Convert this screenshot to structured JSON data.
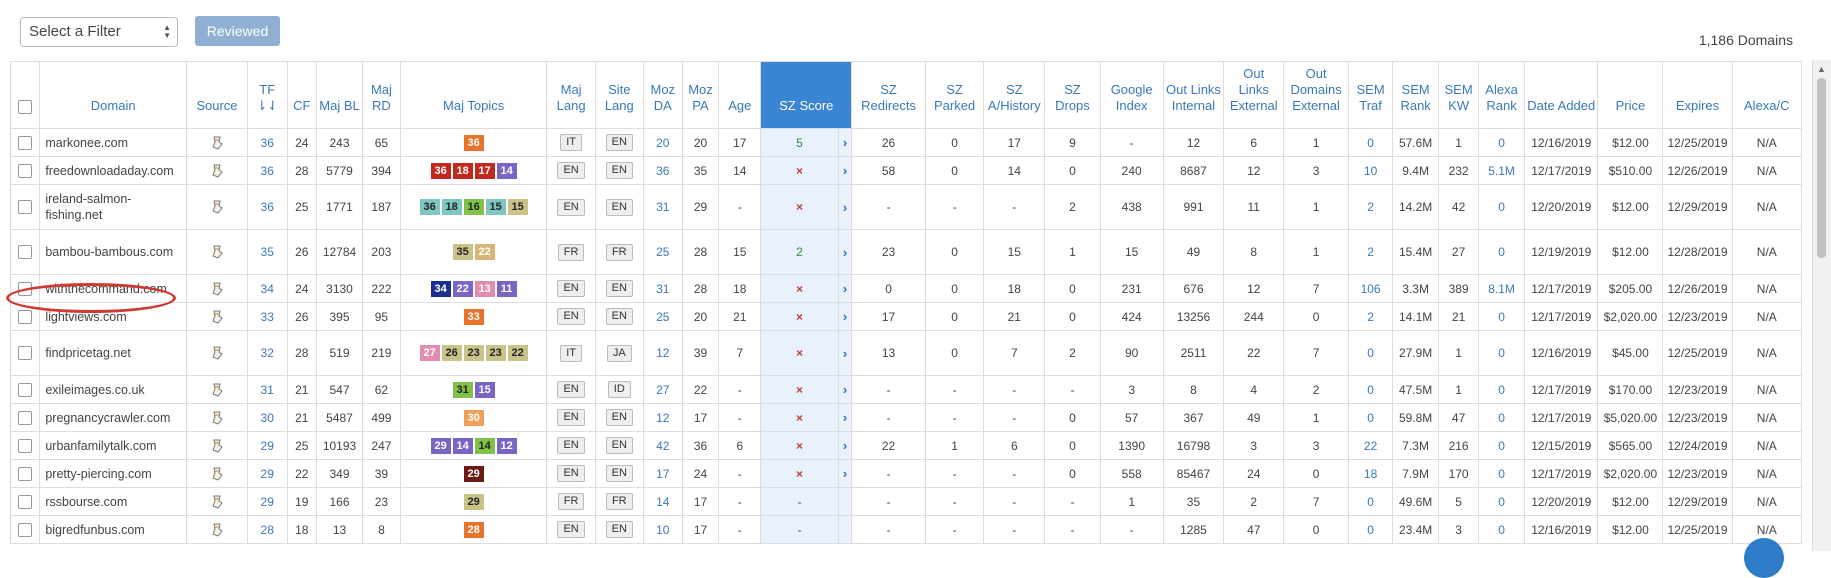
{
  "toolbar": {
    "filter_value": "Select a Filter",
    "reviewed_label": "Reviewed",
    "count_label": "1,186 Domains"
  },
  "columns": [
    {
      "key": "domain",
      "label": "Domain"
    },
    {
      "key": "source",
      "label": "Source"
    },
    {
      "key": "tf",
      "label": "TF"
    },
    {
      "key": "cf",
      "label": "CF"
    },
    {
      "key": "maj_bl",
      "label": "Maj BL"
    },
    {
      "key": "maj_rd",
      "label": "Maj RD"
    },
    {
      "key": "maj_topics",
      "label": "Maj Topics"
    },
    {
      "key": "maj_lang",
      "label": "Maj Lang"
    },
    {
      "key": "site_lang",
      "label": "Site Lang"
    },
    {
      "key": "moz_da",
      "label": "Moz DA"
    },
    {
      "key": "moz_pa",
      "label": "Moz PA"
    },
    {
      "key": "age",
      "label": "Age"
    },
    {
      "key": "sz_score",
      "label": "SZ Score"
    },
    {
      "key": "sz_redirects",
      "label": "SZ Redirects"
    },
    {
      "key": "sz_parked",
      "label": "SZ Parked"
    },
    {
      "key": "sz_history",
      "label": "SZ A/History"
    },
    {
      "key": "sz_drops",
      "label": "SZ Drops"
    },
    {
      "key": "google_index",
      "label": "Google Index"
    },
    {
      "key": "out_links_internal",
      "label": "Out Links Internal"
    },
    {
      "key": "out_links_external",
      "label": "Out Links External"
    },
    {
      "key": "out_domains_external",
      "label": "Out Domains External"
    },
    {
      "key": "sem_traf",
      "label": "SEM Traf"
    },
    {
      "key": "sem_rank",
      "label": "SEM Rank"
    },
    {
      "key": "sem_kw",
      "label": "SEM KW"
    },
    {
      "key": "alexa_rank",
      "label": "Alexa Rank"
    },
    {
      "key": "date_added",
      "label": "Date Added"
    },
    {
      "key": "price",
      "label": "Price"
    },
    {
      "key": "expires",
      "label": "Expires"
    },
    {
      "key": "alexa_c",
      "label": "Alexa/C"
    }
  ],
  "topic_colors": {
    "orange": "#e8742c",
    "red": "#c2281e",
    "purple": "#7a64c4",
    "teal": "#7fc6c2",
    "olive": "#c9c38a",
    "tan": "#d8b479",
    "green": "#7fc247",
    "navy": "#1b2f8f",
    "pink": "#e08db0",
    "darkred": "#6a1a12",
    "peach": "#f0a05a"
  },
  "rows": [
    {
      "domain": "markonee.com",
      "tf": "36",
      "cf": "24",
      "maj_bl": "243",
      "maj_rd": "65",
      "topics": [
        {
          "v": "36",
          "c": "orange",
          "t": "#fff"
        }
      ],
      "maj_lang": "IT",
      "site_lang": "EN",
      "moz_da": "20",
      "moz_pa": "20",
      "age": "17",
      "sz_score": "5",
      "sz_type": "num",
      "sz_redirects": "26",
      "sz_parked": "0",
      "sz_history": "17",
      "sz_drops": "9",
      "google_index": "-",
      "out_links_internal": "12",
      "out_links_external": "6",
      "out_domains_external": "1",
      "sem_traf": "0",
      "sem_rank": "57.6M",
      "sem_kw": "1",
      "alexa_rank": "0",
      "date_added": "12/16/2019",
      "price": "$12.00",
      "expires": "12/25/2019",
      "alexa_c": "N/A",
      "tall": false
    },
    {
      "domain": "freedownloadaday.com",
      "tf": "36",
      "cf": "28",
      "maj_bl": "5779",
      "maj_rd": "394",
      "topics": [
        {
          "v": "36",
          "c": "red",
          "t": "#fff"
        },
        {
          "v": "18",
          "c": "red",
          "t": "#fff"
        },
        {
          "v": "17",
          "c": "red",
          "t": "#fff"
        },
        {
          "v": "14",
          "c": "purple",
          "t": "#fff"
        }
      ],
      "maj_lang": "EN",
      "site_lang": "EN",
      "moz_da": "36",
      "moz_pa": "35",
      "age": "14",
      "sz_score": "×",
      "sz_type": "x",
      "sz_redirects": "58",
      "sz_parked": "0",
      "sz_history": "14",
      "sz_drops": "0",
      "google_index": "240",
      "out_links_internal": "8687",
      "out_links_external": "12",
      "out_domains_external": "3",
      "sem_traf": "10",
      "sem_rank": "9.4M",
      "sem_kw": "232",
      "alexa_rank": "5.1M",
      "date_added": "12/17/2019",
      "price": "$510.00",
      "expires": "12/26/2019",
      "alexa_c": "N/A",
      "tall": false
    },
    {
      "domain": "ireland-salmon-fishing.net",
      "tf": "36",
      "cf": "25",
      "maj_bl": "1771",
      "maj_rd": "187",
      "topics": [
        {
          "v": "36",
          "c": "teal",
          "t": "#222"
        },
        {
          "v": "18",
          "c": "teal",
          "t": "#222"
        },
        {
          "v": "16",
          "c": "green",
          "t": "#222"
        },
        {
          "v": "15",
          "c": "teal",
          "t": "#222"
        },
        {
          "v": "15",
          "c": "olive",
          "t": "#222"
        }
      ],
      "maj_lang": "EN",
      "site_lang": "EN",
      "moz_da": "31",
      "moz_pa": "29",
      "age": "-",
      "sz_score": "×",
      "sz_type": "x",
      "sz_redirects": "-",
      "sz_parked": "-",
      "sz_history": "-",
      "sz_drops": "2",
      "google_index": "438",
      "out_links_internal": "991",
      "out_links_external": "11",
      "out_domains_external": "1",
      "sem_traf": "2",
      "sem_rank": "14.2M",
      "sem_kw": "42",
      "alexa_rank": "0",
      "date_added": "12/20/2019",
      "price": "$12.00",
      "expires": "12/29/2019",
      "alexa_c": "N/A",
      "tall": true
    },
    {
      "domain": "bambou-bambous.com",
      "tf": "35",
      "cf": "26",
      "maj_bl": "12784",
      "maj_rd": "203",
      "topics": [
        {
          "v": "35",
          "c": "olive",
          "t": "#222"
        },
        {
          "v": "22",
          "c": "tan",
          "t": "#fff"
        }
      ],
      "maj_lang": "FR",
      "site_lang": "FR",
      "moz_da": "25",
      "moz_pa": "28",
      "age": "15",
      "sz_score": "2",
      "sz_type": "num",
      "sz_redirects": "23",
      "sz_parked": "0",
      "sz_history": "15",
      "sz_drops": "1",
      "google_index": "15",
      "out_links_internal": "49",
      "out_links_external": "8",
      "out_domains_external": "1",
      "sem_traf": "2",
      "sem_rank": "15.4M",
      "sem_kw": "27",
      "alexa_rank": "0",
      "date_added": "12/19/2019",
      "price": "$12.00",
      "expires": "12/28/2019",
      "alexa_c": "N/A",
      "tall": true
    },
    {
      "domain": "withthecommand.com",
      "tf": "34",
      "cf": "24",
      "maj_bl": "3130",
      "maj_rd": "222",
      "topics": [
        {
          "v": "34",
          "c": "navy",
          "t": "#fff"
        },
        {
          "v": "22",
          "c": "purple",
          "t": "#fff"
        },
        {
          "v": "13",
          "c": "pink",
          "t": "#fff"
        },
        {
          "v": "11",
          "c": "purple",
          "t": "#fff"
        }
      ],
      "maj_lang": "EN",
      "site_lang": "EN",
      "moz_da": "31",
      "moz_pa": "28",
      "age": "18",
      "sz_score": "×",
      "sz_type": "x",
      "sz_redirects": "0",
      "sz_parked": "0",
      "sz_history": "18",
      "sz_drops": "0",
      "google_index": "231",
      "out_links_internal": "676",
      "out_links_external": "12",
      "out_domains_external": "7",
      "sem_traf": "106",
      "sem_rank": "3.3M",
      "sem_kw": "389",
      "alexa_rank": "8.1M",
      "date_added": "12/17/2019",
      "price": "$205.00",
      "expires": "12/26/2019",
      "alexa_c": "N/A",
      "tall": false
    },
    {
      "domain": "lightviews.com",
      "tf": "33",
      "cf": "26",
      "maj_bl": "395",
      "maj_rd": "95",
      "topics": [
        {
          "v": "33",
          "c": "orange",
          "t": "#fff"
        }
      ],
      "maj_lang": "EN",
      "site_lang": "EN",
      "moz_da": "25",
      "moz_pa": "20",
      "age": "21",
      "sz_score": "×",
      "sz_type": "x",
      "sz_redirects": "17",
      "sz_parked": "0",
      "sz_history": "21",
      "sz_drops": "0",
      "google_index": "424",
      "out_links_internal": "13256",
      "out_links_external": "244",
      "out_domains_external": "0",
      "sem_traf": "2",
      "sem_rank": "14.1M",
      "sem_kw": "21",
      "alexa_rank": "0",
      "date_added": "12/17/2019",
      "price": "$2,020.00",
      "expires": "12/23/2019",
      "alexa_c": "N/A",
      "tall": false
    },
    {
      "domain": "findpricetag.net",
      "tf": "32",
      "cf": "28",
      "maj_bl": "519",
      "maj_rd": "219",
      "topics": [
        {
          "v": "27",
          "c": "pink",
          "t": "#fff"
        },
        {
          "v": "26",
          "c": "olive",
          "t": "#222"
        },
        {
          "v": "23",
          "c": "olive",
          "t": "#222"
        },
        {
          "v": "23",
          "c": "olive",
          "t": "#222"
        },
        {
          "v": "22",
          "c": "olive",
          "t": "#222"
        }
      ],
      "maj_lang": "IT",
      "site_lang": "JA",
      "moz_da": "12",
      "moz_pa": "39",
      "age": "7",
      "sz_score": "×",
      "sz_type": "x",
      "sz_redirects": "13",
      "sz_parked": "0",
      "sz_history": "7",
      "sz_drops": "2",
      "google_index": "90",
      "out_links_internal": "2511",
      "out_links_external": "22",
      "out_domains_external": "7",
      "sem_traf": "0",
      "sem_rank": "27.9M",
      "sem_kw": "1",
      "alexa_rank": "0",
      "date_added": "12/16/2019",
      "price": "$45.00",
      "expires": "12/25/2019",
      "alexa_c": "N/A",
      "tall": true
    },
    {
      "domain": "exileimages.co.uk",
      "tf": "31",
      "cf": "21",
      "maj_bl": "547",
      "maj_rd": "62",
      "topics": [
        {
          "v": "31",
          "c": "green",
          "t": "#222"
        },
        {
          "v": "15",
          "c": "purple",
          "t": "#fff"
        }
      ],
      "maj_lang": "EN",
      "site_lang": "ID",
      "moz_da": "27",
      "moz_pa": "22",
      "age": "-",
      "sz_score": "×",
      "sz_type": "x",
      "sz_redirects": "-",
      "sz_parked": "-",
      "sz_history": "-",
      "sz_drops": "-",
      "google_index": "3",
      "out_links_internal": "8",
      "out_links_external": "4",
      "out_domains_external": "2",
      "sem_traf": "0",
      "sem_rank": "47.5M",
      "sem_kw": "1",
      "alexa_rank": "0",
      "date_added": "12/17/2019",
      "price": "$170.00",
      "expires": "12/23/2019",
      "alexa_c": "N/A",
      "tall": false
    },
    {
      "domain": "pregnancycrawler.com",
      "tf": "30",
      "cf": "21",
      "maj_bl": "5487",
      "maj_rd": "499",
      "topics": [
        {
          "v": "30",
          "c": "peach",
          "t": "#fff"
        }
      ],
      "maj_lang": "EN",
      "site_lang": "EN",
      "moz_da": "12",
      "moz_pa": "17",
      "age": "-",
      "sz_score": "×",
      "sz_type": "x",
      "sz_redirects": "-",
      "sz_parked": "-",
      "sz_history": "-",
      "sz_drops": "0",
      "google_index": "57",
      "out_links_internal": "367",
      "out_links_external": "49",
      "out_domains_external": "1",
      "sem_traf": "0",
      "sem_rank": "59.8M",
      "sem_kw": "47",
      "alexa_rank": "0",
      "date_added": "12/17/2019",
      "price": "$5,020.00",
      "expires": "12/23/2019",
      "alexa_c": "N/A",
      "tall": false
    },
    {
      "domain": "urbanfamilytalk.com",
      "tf": "29",
      "cf": "25",
      "maj_bl": "10193",
      "maj_rd": "247",
      "topics": [
        {
          "v": "29",
          "c": "purple",
          "t": "#fff"
        },
        {
          "v": "14",
          "c": "purple",
          "t": "#fff"
        },
        {
          "v": "14",
          "c": "green",
          "t": "#222"
        },
        {
          "v": "12",
          "c": "purple",
          "t": "#fff"
        }
      ],
      "maj_lang": "EN",
      "site_lang": "EN",
      "moz_da": "42",
      "moz_pa": "36",
      "age": "6",
      "sz_score": "×",
      "sz_type": "x",
      "sz_redirects": "22",
      "sz_parked": "1",
      "sz_history": "6",
      "sz_drops": "0",
      "google_index": "1390",
      "out_links_internal": "16798",
      "out_links_external": "3",
      "out_domains_external": "3",
      "sem_traf": "22",
      "sem_rank": "7.3M",
      "sem_kw": "216",
      "alexa_rank": "0",
      "date_added": "12/15/2019",
      "price": "$565.00",
      "expires": "12/24/2019",
      "alexa_c": "N/A",
      "tall": false
    },
    {
      "domain": "pretty-piercing.com",
      "tf": "29",
      "cf": "22",
      "maj_bl": "349",
      "maj_rd": "39",
      "topics": [
        {
          "v": "29",
          "c": "darkred",
          "t": "#fff"
        }
      ],
      "maj_lang": "EN",
      "site_lang": "EN",
      "moz_da": "17",
      "moz_pa": "24",
      "age": "-",
      "sz_score": "×",
      "sz_type": "x",
      "sz_redirects": "-",
      "sz_parked": "-",
      "sz_history": "-",
      "sz_drops": "0",
      "google_index": "558",
      "out_links_internal": "85467",
      "out_links_external": "24",
      "out_domains_external": "0",
      "sem_traf": "18",
      "sem_rank": "7.9M",
      "sem_kw": "170",
      "alexa_rank": "0",
      "date_added": "12/17/2019",
      "price": "$2,020.00",
      "expires": "12/23/2019",
      "alexa_c": "N/A",
      "tall": false
    },
    {
      "domain": "rssbourse.com",
      "tf": "29",
      "cf": "19",
      "maj_bl": "166",
      "maj_rd": "23",
      "topics": [
        {
          "v": "29",
          "c": "olive",
          "t": "#222"
        }
      ],
      "maj_lang": "FR",
      "site_lang": "FR",
      "moz_da": "14",
      "moz_pa": "17",
      "age": "-",
      "sz_score": "-",
      "sz_type": "dash",
      "sz_redirects": "-",
      "sz_parked": "-",
      "sz_history": "-",
      "sz_drops": "-",
      "google_index": "1",
      "out_links_internal": "35",
      "out_links_external": "2",
      "out_domains_external": "7",
      "sem_traf": "0",
      "sem_rank": "49.6M",
      "sem_kw": "5",
      "alexa_rank": "0",
      "date_added": "12/20/2019",
      "price": "$12.00",
      "expires": "12/29/2019",
      "alexa_c": "N/A",
      "tall": false
    },
    {
      "domain": "bigredfunbus.com",
      "tf": "28",
      "cf": "18",
      "maj_bl": "13",
      "maj_rd": "8",
      "topics": [
        {
          "v": "28",
          "c": "orange",
          "t": "#fff"
        }
      ],
      "maj_lang": "EN",
      "site_lang": "EN",
      "moz_da": "10",
      "moz_pa": "17",
      "age": "-",
      "sz_score": "-",
      "sz_type": "dash",
      "sz_redirects": "-",
      "sz_parked": "-",
      "sz_history": "-",
      "sz_drops": "-",
      "google_index": "-",
      "out_links_internal": "1285",
      "out_links_external": "47",
      "out_domains_external": "0",
      "sem_traf": "0",
      "sem_rank": "23.4M",
      "sem_kw": "3",
      "alexa_rank": "0",
      "date_added": "12/16/2019",
      "price": "$12.00",
      "expires": "12/25/2019",
      "alexa_c": "N/A",
      "tall": false
    }
  ]
}
